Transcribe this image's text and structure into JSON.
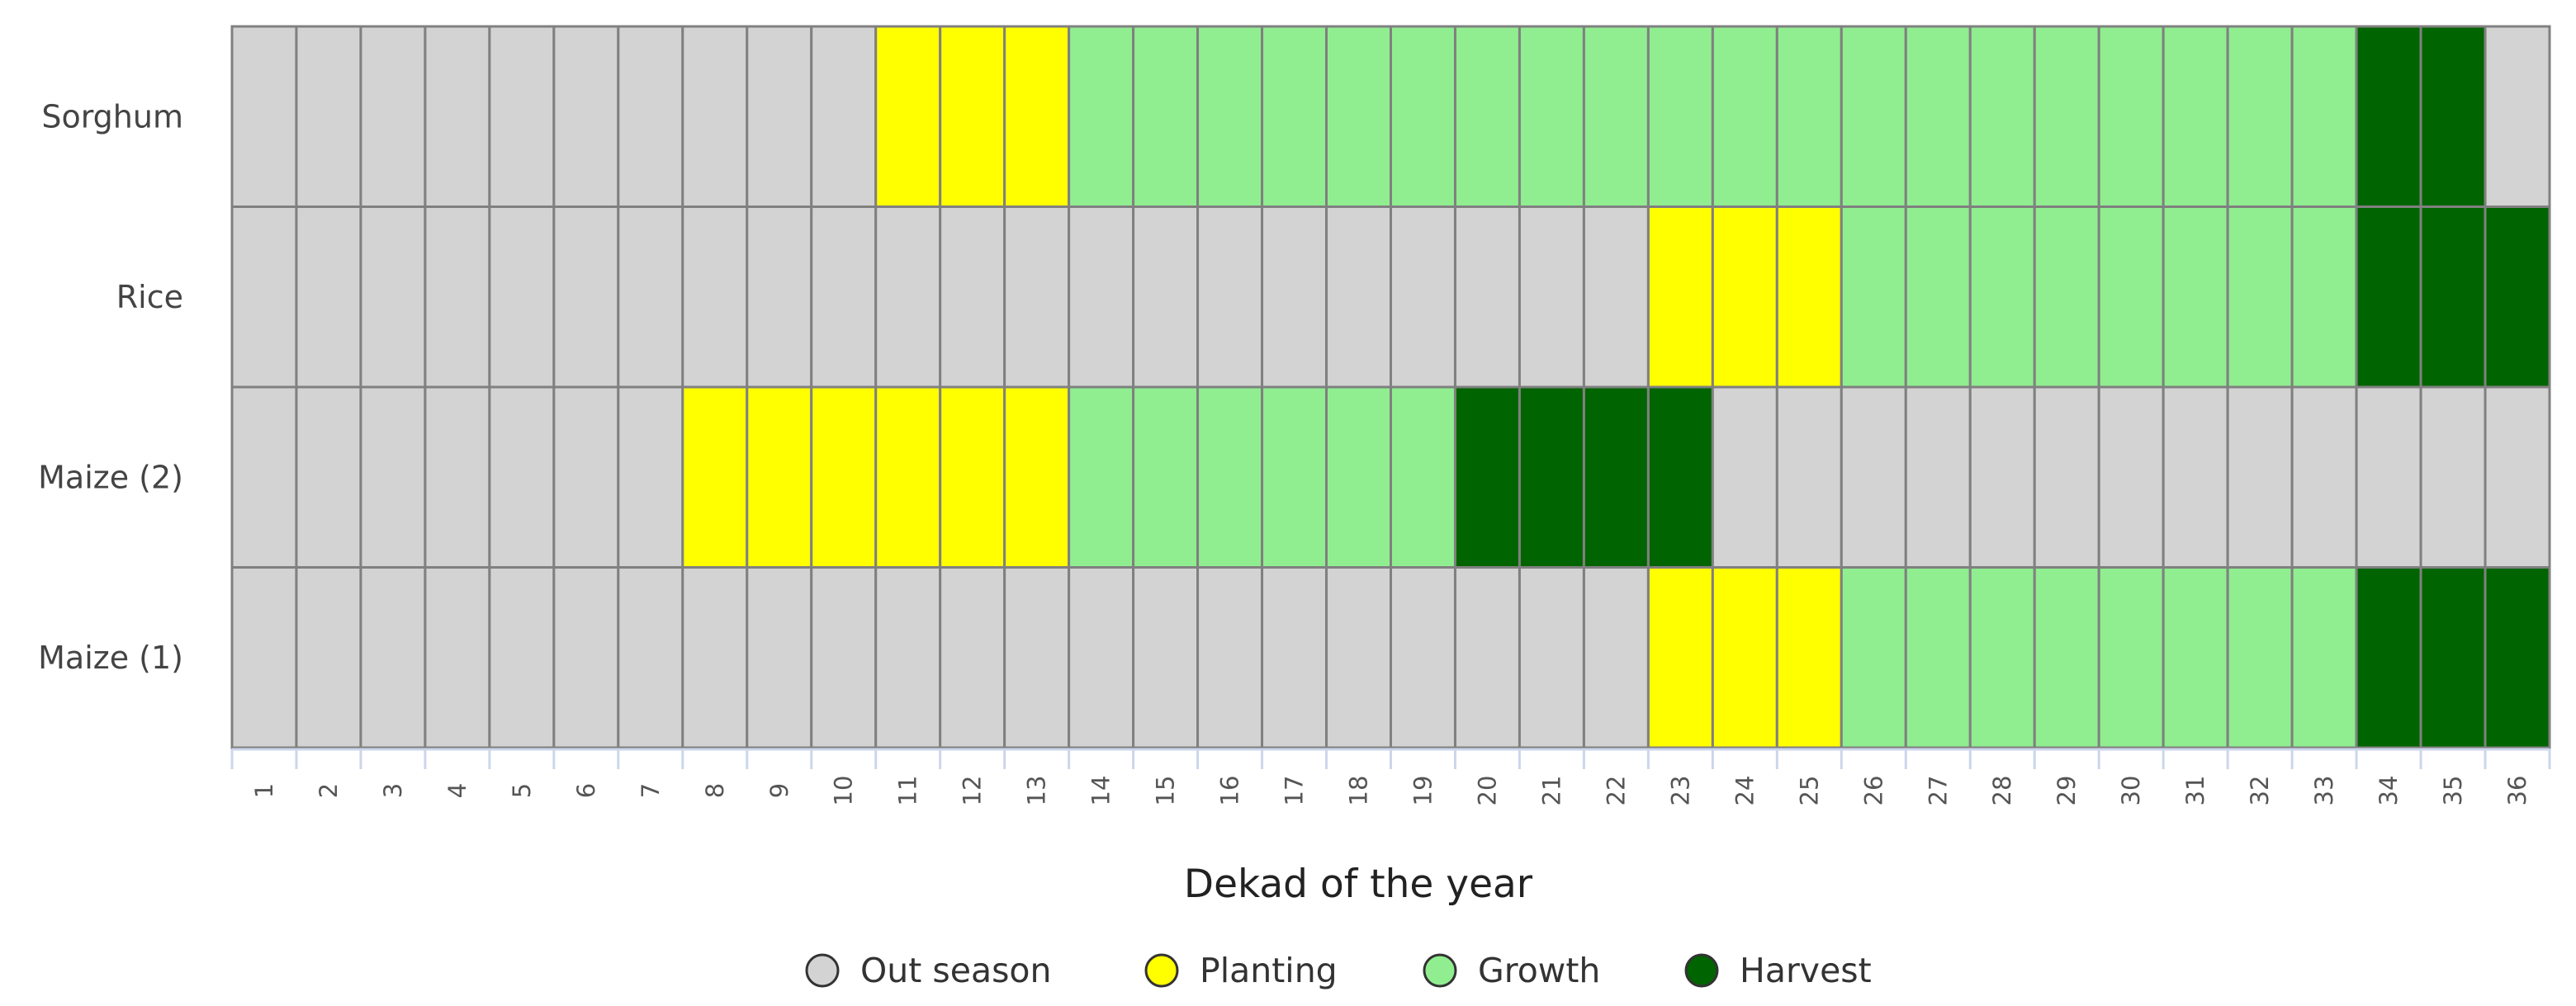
{
  "chart_data": {
    "type": "heatmap",
    "title": "",
    "xlabel": "Dekad of the year",
    "ylabel": "",
    "x": [
      "1",
      "2",
      "3",
      "4",
      "5",
      "6",
      "7",
      "8",
      "9",
      "10",
      "11",
      "12",
      "13",
      "14",
      "15",
      "16",
      "17",
      "18",
      "19",
      "20",
      "21",
      "22",
      "23",
      "24",
      "25",
      "26",
      "27",
      "28",
      "29",
      "30",
      "31",
      "32",
      "33",
      "34",
      "35",
      "36"
    ],
    "rows": [
      {
        "label": "Sorghum",
        "values": "000000000011122222222222222222222330"
      },
      {
        "label": "Rice",
        "values": "000000000000000000000011122222222333"
      },
      {
        "label": "Maize (2)",
        "values": "000000011111122222233330000000000000"
      },
      {
        "label": "Maize (1)",
        "values": "000000000000000000000011122222222333"
      }
    ],
    "legend_position": "bottom",
    "categories": [
      {
        "code": 0,
        "name": "Out season",
        "color": "#d3d3d3"
      },
      {
        "code": 1,
        "name": "Planting",
        "color": "#ffff00"
      },
      {
        "code": 2,
        "name": "Growth",
        "color": "#90ee90"
      },
      {
        "code": 3,
        "name": "Harvest",
        "color": "#006400"
      }
    ],
    "grid_color": "#808080",
    "axis_color": "#ccd6eb"
  }
}
